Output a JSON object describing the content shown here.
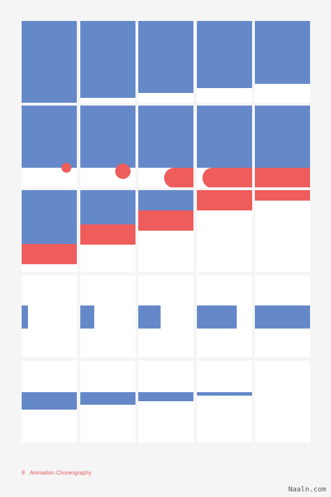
{
  "footer": {
    "page_number": "8",
    "title": "Animation Choreography"
  },
  "watermark": "Naaln.com",
  "colors": {
    "blue": "#6589c8",
    "red": "#ee5c5c",
    "background": "#f5f5f5",
    "frame": "#ffffff"
  }
}
